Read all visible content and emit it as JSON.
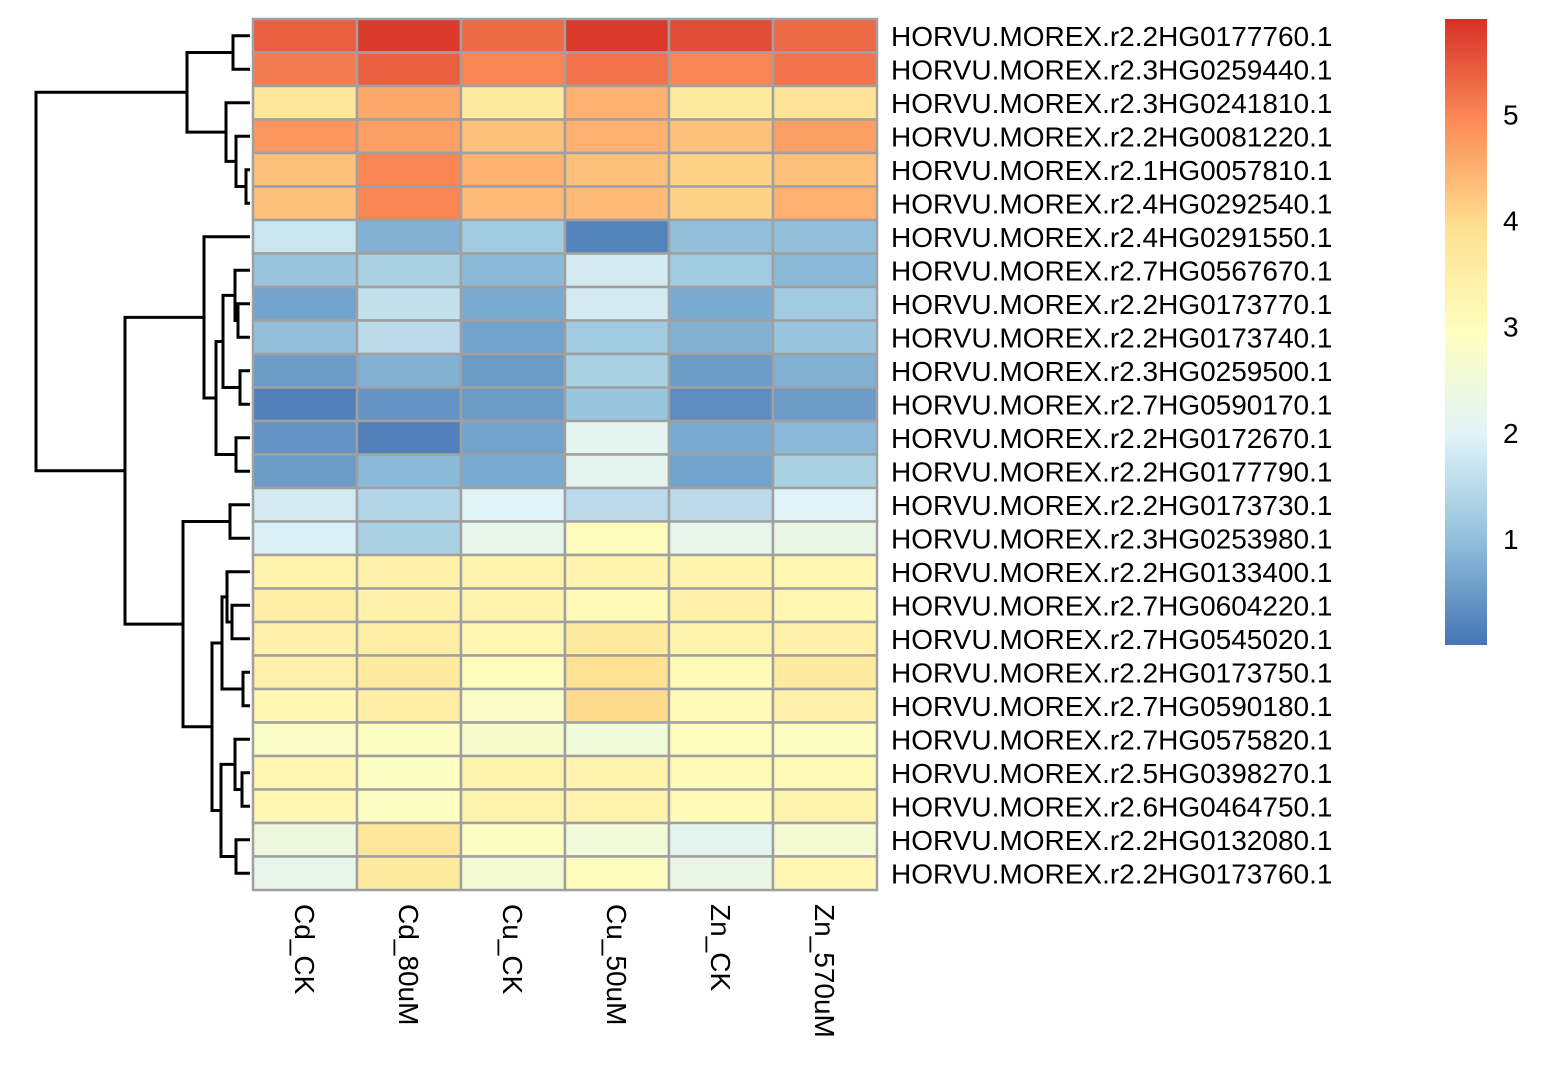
{
  "chart_data": {
    "type": "heatmap",
    "columns": [
      "Cd_CK",
      "Cd_80uM",
      "Cu_CK",
      "Cu_50uM",
      "Zn_CK",
      "Zn_570uM"
    ],
    "rows": [
      "HORVU.MOREX.r2.2HG0177760.1",
      "HORVU.MOREX.r2.3HG0259440.1",
      "HORVU.MOREX.r2.3HG0241810.1",
      "HORVU.MOREX.r2.2HG0081220.1",
      "HORVU.MOREX.r2.1HG0057810.1",
      "HORVU.MOREX.r2.4HG0292540.1",
      "HORVU.MOREX.r2.4HG0291550.1",
      "HORVU.MOREX.r2.7HG0567670.1",
      "HORVU.MOREX.r2.2HG0173770.1",
      "HORVU.MOREX.r2.2HG0173740.1",
      "HORVU.MOREX.r2.3HG0259500.1",
      "HORVU.MOREX.r2.7HG0590170.1",
      "HORVU.MOREX.r2.2HG0172670.1",
      "HORVU.MOREX.r2.2HG0177790.1",
      "HORVU.MOREX.r2.2HG0173730.1",
      "HORVU.MOREX.r2.3HG0253980.1",
      "HORVU.MOREX.r2.2HG0133400.1",
      "HORVU.MOREX.r2.7HG0604220.1",
      "HORVU.MOREX.r2.7HG0545020.1",
      "HORVU.MOREX.r2.2HG0173750.1",
      "HORVU.MOREX.r2.7HG0590180.1",
      "HORVU.MOREX.r2.7HG0575820.1",
      "HORVU.MOREX.r2.5HG0398270.1",
      "HORVU.MOREX.r2.6HG0464750.1",
      "HORVU.MOREX.r2.2HG0132080.1",
      "HORVU.MOREX.r2.2HG0173760.1"
    ],
    "values": [
      [
        5.4,
        5.8,
        5.3,
        5.8,
        5.6,
        5.3
      ],
      [
        5.1,
        5.4,
        5.0,
        5.2,
        5.0,
        5.2
      ],
      [
        3.7,
        4.6,
        3.6,
        4.5,
        3.6,
        3.8
      ],
      [
        4.8,
        4.7,
        4.3,
        4.5,
        4.3,
        4.7
      ],
      [
        4.3,
        5.0,
        4.5,
        4.3,
        4.1,
        4.3
      ],
      [
        4.3,
        5.0,
        4.4,
        4.4,
        4.1,
        4.5
      ],
      [
        1.7,
        0.8,
        1.2,
        0.2,
        1.0,
        1.0
      ],
      [
        1.1,
        1.3,
        0.9,
        1.8,
        1.2,
        0.9
      ],
      [
        0.6,
        1.6,
        0.7,
        1.8,
        0.7,
        1.2
      ],
      [
        1.0,
        1.5,
        0.6,
        1.2,
        0.8,
        1.1
      ],
      [
        0.5,
        0.8,
        0.5,
        1.3,
        0.5,
        0.8
      ],
      [
        0.15,
        0.4,
        0.5,
        1.1,
        0.3,
        0.5
      ],
      [
        0.4,
        0.15,
        0.6,
        2.1,
        0.7,
        0.9
      ],
      [
        0.5,
        0.9,
        0.7,
        2.1,
        0.6,
        1.3
      ],
      [
        1.8,
        1.4,
        2.0,
        1.5,
        1.5,
        2.0
      ],
      [
        1.9,
        1.3,
        2.2,
        3.0,
        2.2,
        2.3
      ],
      [
        3.3,
        3.4,
        3.3,
        3.3,
        3.3,
        3.2
      ],
      [
        3.5,
        3.4,
        3.3,
        3.1,
        3.4,
        3.2
      ],
      [
        3.4,
        3.5,
        3.2,
        3.6,
        3.3,
        3.4
      ],
      [
        3.4,
        3.6,
        3.0,
        3.9,
        3.1,
        3.6
      ],
      [
        3.2,
        3.5,
        2.8,
        4.0,
        3.1,
        3.4
      ],
      [
        2.8,
        2.9,
        2.7,
        2.5,
        3.0,
        2.9
      ],
      [
        3.2,
        2.9,
        3.3,
        3.3,
        3.1,
        3.1
      ],
      [
        3.2,
        2.9,
        3.3,
        3.3,
        3.1,
        3.3
      ],
      [
        2.4,
        3.7,
        2.9,
        2.5,
        2.1,
        2.6
      ],
      [
        2.2,
        3.6,
        2.6,
        3.0,
        2.3,
        3.2
      ]
    ],
    "colorbar": {
      "ticks": [
        1,
        2,
        3,
        4,
        5
      ],
      "tick_labels": [
        "1",
        "2",
        "3",
        "4",
        "5"
      ],
      "range": [
        0,
        5.9
      ],
      "colors": [
        "#4575b4",
        "#91bfdb",
        "#e0f3f8",
        "#ffffbf",
        "#fee090",
        "#fc8d59",
        "#d73027"
      ]
    },
    "cell_border_color": "#a0a0a0",
    "legend_position": "right"
  }
}
